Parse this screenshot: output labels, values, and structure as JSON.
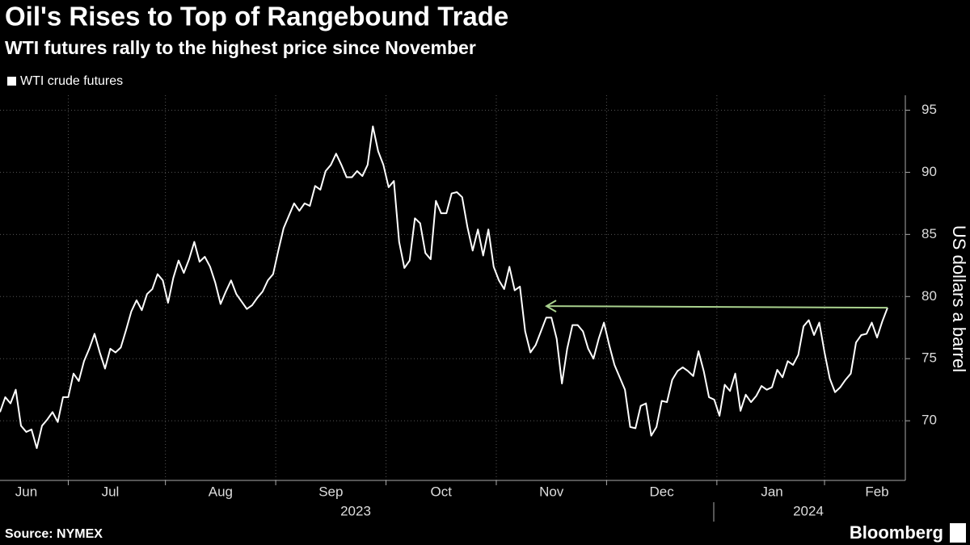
{
  "chart_data": {
    "type": "line",
    "title": "Oil's Rises to Top of Rangebound Trade",
    "subtitle": "WTI futures rally to the highest price since November",
    "y_axis_label": "US dollars a barrel",
    "source": "Source: NYMEX",
    "brand": "Bloomberg",
    "year_labels": [
      "2023",
      "2024"
    ],
    "categories": [
      null,
      null,
      null,
      null,
      null,
      "Jun",
      null,
      null,
      null,
      null,
      null,
      null,
      null,
      null,
      null,
      null,
      null,
      null,
      null,
      null,
      null,
      "Jul",
      null,
      null,
      null,
      null,
      null,
      null,
      null,
      null,
      null,
      null,
      null,
      null,
      null,
      null,
      null,
      null,
      null,
      null,
      null,
      null,
      "Aug",
      null,
      null,
      null,
      null,
      null,
      null,
      null,
      null,
      null,
      null,
      null,
      null,
      null,
      null,
      null,
      null,
      null,
      null,
      null,
      null,
      "Sep",
      null,
      null,
      null,
      null,
      null,
      null,
      null,
      null,
      null,
      null,
      null,
      null,
      null,
      null,
      null,
      null,
      null,
      null,
      null,
      null,
      "Oct",
      null,
      null,
      null,
      null,
      null,
      null,
      null,
      null,
      null,
      null,
      null,
      null,
      null,
      null,
      null,
      null,
      null,
      null,
      null,
      null,
      "Nov",
      null,
      null,
      null,
      null,
      null,
      null,
      null,
      null,
      null,
      null,
      null,
      null,
      null,
      null,
      null,
      null,
      null,
      null,
      null,
      null,
      "Dec",
      null,
      null,
      null,
      null,
      null,
      null,
      null,
      null,
      null,
      null,
      null,
      null,
      null,
      null,
      null,
      null,
      null,
      null,
      null,
      null,
      "Jan",
      null,
      null,
      null,
      null,
      null,
      null,
      null,
      null,
      null,
      null,
      null,
      null,
      null,
      null,
      null,
      null,
      null,
      null,
      null,
      "Feb",
      null,
      null
    ],
    "series": [
      {
        "name": "WTI crude futures",
        "color": "#ffffff",
        "values": [
          70.7,
          71.9,
          71.4,
          72.5,
          69.6,
          69.1,
          69.3,
          67.8,
          69.6,
          70.1,
          70.7,
          69.9,
          71.9,
          71.9,
          73.8,
          73.2,
          74.8,
          75.8,
          77.0,
          75.5,
          74.2,
          75.8,
          75.5,
          75.9,
          77.3,
          78.8,
          79.7,
          78.9,
          80.2,
          80.6,
          81.8,
          81.3,
          79.5,
          81.5,
          82.9,
          81.9,
          83.0,
          84.4,
          82.8,
          83.2,
          82.4,
          81.1,
          79.4,
          80.4,
          81.3,
          80.2,
          79.6,
          79.0,
          79.3,
          79.9,
          80.4,
          81.3,
          81.8,
          83.7,
          85.5,
          86.5,
          87.5,
          86.9,
          87.5,
          87.3,
          88.9,
          88.6,
          90.1,
          90.6,
          91.5,
          90.6,
          89.6,
          89.6,
          90.1,
          89.7,
          90.6,
          93.7,
          91.7,
          90.6,
          88.8,
          89.3,
          84.4,
          82.3,
          82.9,
          86.3,
          85.9,
          83.5,
          83.0,
          87.7,
          86.7,
          86.7,
          88.3,
          88.4,
          88.0,
          85.6,
          83.7,
          85.4,
          83.3,
          85.4,
          82.4,
          81.3,
          80.6,
          82.4,
          80.5,
          80.8,
          77.2,
          75.5,
          76.1,
          77.2,
          78.3,
          78.3,
          76.6,
          73.0,
          75.8,
          77.7,
          77.7,
          77.2,
          75.8,
          75.0,
          76.6,
          77.9,
          76.1,
          74.5,
          73.5,
          72.5,
          69.5,
          69.4,
          71.2,
          71.4,
          68.8,
          69.5,
          71.6,
          71.5,
          73.3,
          74.0,
          74.3,
          74.0,
          73.6,
          75.6,
          74.0,
          71.9,
          71.7,
          70.4,
          72.9,
          72.4,
          73.8,
          70.8,
          72.1,
          71.5,
          72.0,
          72.8,
          72.5,
          72.7,
          74.1,
          73.5,
          74.8,
          74.5,
          75.3,
          77.6,
          78.1,
          76.9,
          77.9,
          75.5,
          73.4,
          72.3,
          72.7,
          73.3,
          73.8,
          76.3,
          76.9,
          77.0,
          77.9,
          76.7,
          78.0,
          79.1
        ]
      }
    ],
    "ylim": [
      65.2,
      96.2
    ],
    "yticks": [
      70,
      75,
      80,
      85,
      90,
      95
    ],
    "grid": true,
    "annotation_color": "#a9d18e"
  }
}
